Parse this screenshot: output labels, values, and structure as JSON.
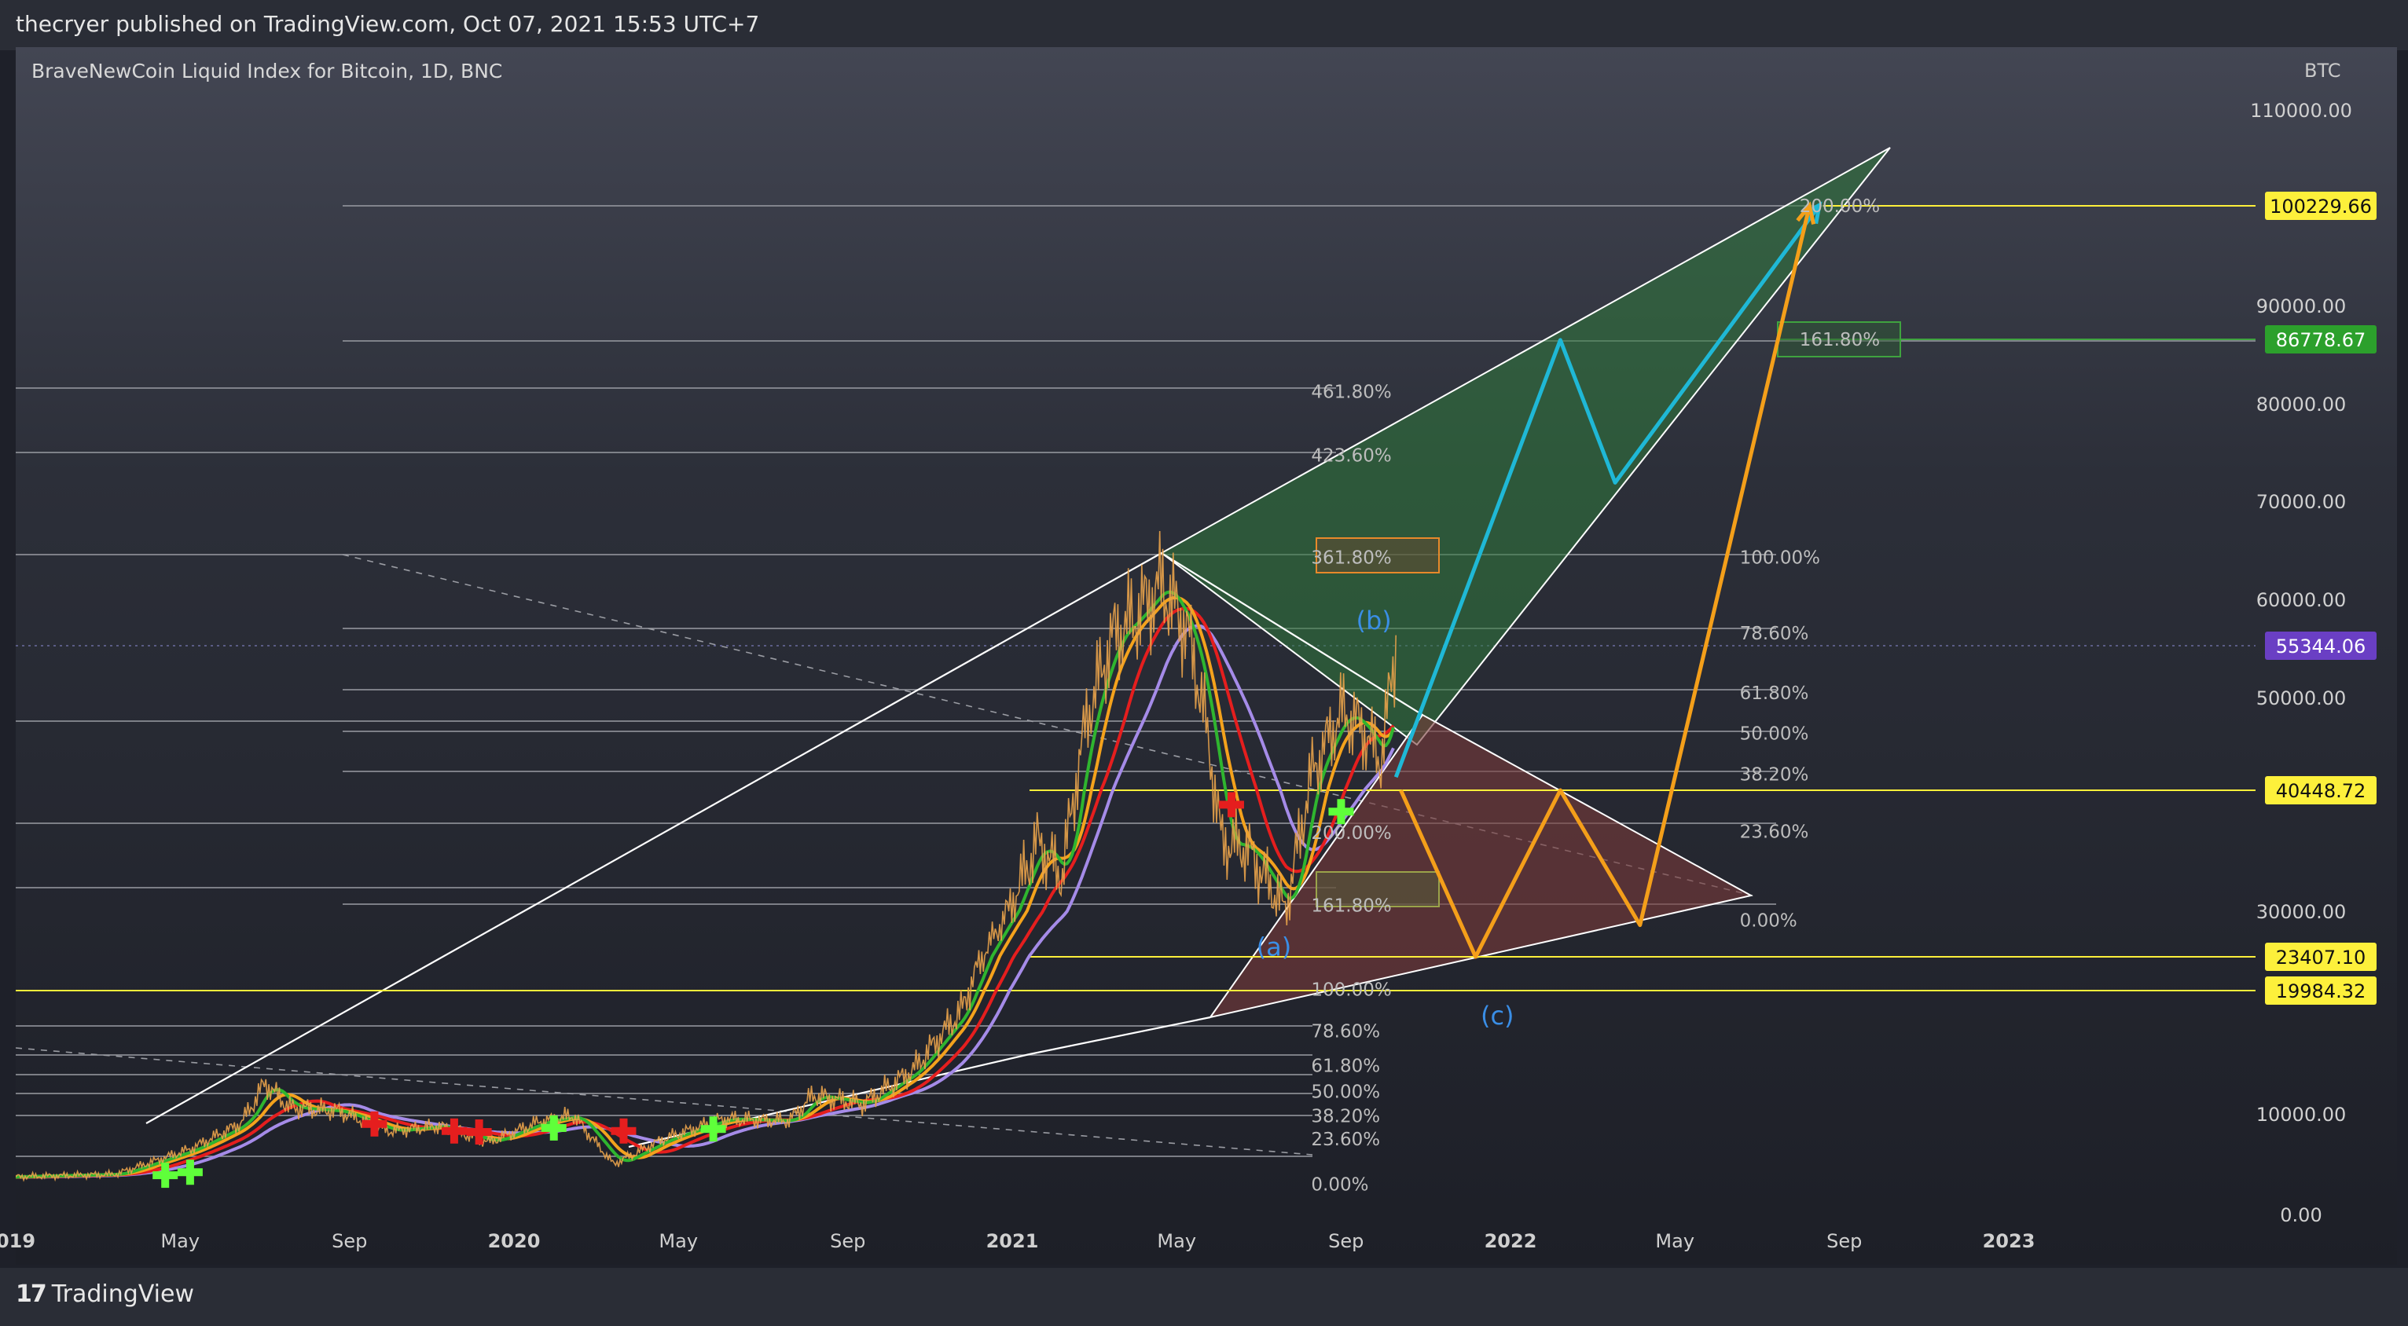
{
  "header": {
    "publish_info": "thecryer published on TradingView.com, Oct 07, 2021 15:53 UTC+7"
  },
  "chart_title": "BraveNewCoin Liquid Index for Bitcoin, 1D, BNC",
  "symbol": "BTC",
  "footer": {
    "brand": "TradingView"
  },
  "chart_data": {
    "type": "line",
    "title": "BraveNewCoin Liquid Index for Bitcoin, 1D, BNC",
    "ylim": [
      0,
      110000
    ],
    "y_ticks": [
      {
        "value": 110000,
        "label": "110000.00"
      },
      {
        "value": 90000,
        "label": "90000.00"
      },
      {
        "value": 80000,
        "label": "80000.00"
      },
      {
        "value": 70000,
        "label": "70000.00"
      },
      {
        "value": 60000,
        "label": "60000.00"
      },
      {
        "value": 50000,
        "label": "50000.00"
      },
      {
        "value": 30000,
        "label": "30000.00"
      },
      {
        "value": 10000,
        "label": "10000.00"
      },
      {
        "value": 0,
        "label": "0.00"
      }
    ],
    "x_ticks": [
      {
        "label": "019",
        "t": 2019.0,
        "bold": true
      },
      {
        "label": "May",
        "t": 2019.33
      },
      {
        "label": "Sep",
        "t": 2019.67
      },
      {
        "label": "2020",
        "t": 2020.0,
        "bold": true
      },
      {
        "label": "May",
        "t": 2020.33
      },
      {
        "label": "Sep",
        "t": 2020.67
      },
      {
        "label": "2021",
        "t": 2021.0,
        "bold": true
      },
      {
        "label": "May",
        "t": 2021.33
      },
      {
        "label": "Sep",
        "t": 2021.67
      },
      {
        "label": "2022",
        "t": 2022.0,
        "bold": true
      },
      {
        "label": "May",
        "t": 2022.33
      },
      {
        "label": "Sep",
        "t": 2022.67
      },
      {
        "label": "2023",
        "t": 2023.0,
        "bold": true
      }
    ],
    "price_labels": [
      {
        "value": 100229.66,
        "label": "100229.66",
        "bg": "#fdf03b",
        "fg": "#111111"
      },
      {
        "value": 86778.67,
        "label": "86778.67",
        "bg": "#2ca02c",
        "fg": "#ffffff"
      },
      {
        "value": 55344.06,
        "label": "55344.06",
        "bg": "#6a3fc4",
        "fg": "#ffffff"
      },
      {
        "value": 40448.72,
        "label": "40448.72",
        "bg": "#fdf03b",
        "fg": "#111111"
      },
      {
        "value": 23407.1,
        "label": "23407.10",
        "bg": "#fdf03b",
        "fg": "#111111"
      },
      {
        "value": 19984.32,
        "label": "19984.32",
        "bg": "#fdf03b",
        "fg": "#111111"
      }
    ],
    "fib_labels": [
      {
        "text": "200.00%",
        "t": 2022.58,
        "v": 100229
      },
      {
        "text": "161.80%",
        "t": 2022.58,
        "v": 86778
      },
      {
        "text": "461.80%",
        "t": 2021.6,
        "v": 81300
      },
      {
        "text": "423.60%",
        "t": 2021.6,
        "v": 74700
      },
      {
        "text": "361.80%",
        "t": 2021.6,
        "v": 64300
      },
      {
        "text": "100.00%",
        "t": 2022.46,
        "v": 64300
      },
      {
        "text": "78.60%",
        "t": 2022.46,
        "v": 56600
      },
      {
        "text": "61.80%",
        "t": 2022.46,
        "v": 50500
      },
      {
        "text": "50.00%",
        "t": 2022.46,
        "v": 46300
      },
      {
        "text": "38.20%",
        "t": 2022.46,
        "v": 42100
      },
      {
        "text": "23.60%",
        "t": 2022.46,
        "v": 36900
      },
      {
        "text": "0.00%",
        "t": 2022.46,
        "v": 28700
      },
      {
        "text": "200.00%",
        "t": 2021.6,
        "v": 36800
      },
      {
        "text": "161.80%",
        "t": 2021.6,
        "v": 30500
      },
      {
        "text": "100.00%",
        "t": 2021.6,
        "v": 20100
      },
      {
        "text": "78.60%",
        "t": 2021.6,
        "v": 16700
      },
      {
        "text": "61.80%",
        "t": 2021.6,
        "v": 13900
      },
      {
        "text": "50.00%",
        "t": 2021.6,
        "v": 11800
      },
      {
        "text": "38.20%",
        "t": 2021.6,
        "v": 9800
      },
      {
        "text": "23.60%",
        "t": 2021.6,
        "v": 7500
      },
      {
        "text": "0.00%",
        "t": 2021.6,
        "v": 3000
      }
    ],
    "wave_labels": [
      {
        "text": "(b)",
        "t": 2021.69,
        "v": 57800
      },
      {
        "text": "(a)",
        "t": 2021.49,
        "v": 24700
      },
      {
        "text": "(c)",
        "t": 2021.94,
        "v": 17900
      }
    ],
    "projections": {
      "cyan": {
        "color": "#1fb8d6",
        "points": [
          [
            2021.77,
            41800
          ],
          [
            2022.1,
            86700
          ],
          [
            2022.21,
            71900
          ],
          [
            2022.62,
            100300
          ]
        ]
      },
      "orange_down": {
        "color": "#f49f1a",
        "points": [
          [
            2021.78,
            40448
          ],
          [
            2021.93,
            23407
          ],
          [
            2022.1,
            40448
          ],
          [
            2022.26,
            28000
          ],
          [
            2022.6,
            100229
          ]
        ]
      }
    },
    "series": [
      {
        "name": "",
        "color": "#e8a24a",
        "values_desc": "price"
      },
      {
        "name": "",
        "color": "#2fb52f"
      },
      {
        "name": "",
        "color": "#f4a21c"
      },
      {
        "name": "",
        "color": "#e51e1e"
      },
      {
        "name": "",
        "color": "#a58be8"
      }
    ]
  }
}
